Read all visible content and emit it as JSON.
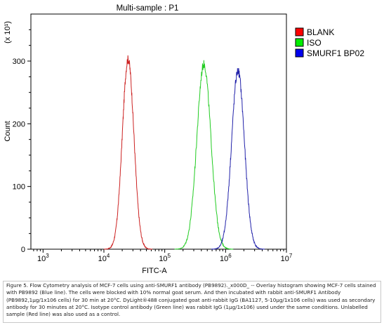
{
  "chart_data": {
    "type": "line",
    "title": "Multi-sample : P1",
    "xlabel": "FITC-A",
    "ylabel": "Count",
    "y_multiplier_label": "(x 10¹)",
    "x_scale": "log",
    "xlim": [
      631,
      10000000
    ],
    "ylim": [
      0,
      375
    ],
    "x_ticks": [
      {
        "value": 1000,
        "base": "10",
        "exp": "3"
      },
      {
        "value": 10000,
        "base": "10",
        "exp": "4"
      },
      {
        "value": 100000,
        "base": "10",
        "exp": "5"
      },
      {
        "value": 1000000,
        "base": "10",
        "exp": "6"
      },
      {
        "value": 10000000,
        "base": "10",
        "exp": "7"
      }
    ],
    "y_ticks": [
      0,
      100,
      200,
      300
    ],
    "grid": false,
    "legend_position": "top-right",
    "series": [
      {
        "name": "BLANK",
        "color": "#cc2222",
        "legend_color": "#ff0000",
        "peak_x": 25000,
        "peak_y": 303,
        "width_decades": 0.095
      },
      {
        "name": "ISO",
        "color": "#22cc22",
        "legend_color": "#00ee00",
        "peak_x": 440000,
        "peak_y": 295,
        "width_decades": 0.115
      },
      {
        "name": "SMURF1 BP02",
        "color": "#2222aa",
        "legend_color": "#0000ee",
        "peak_x": 1600000,
        "peak_y": 284,
        "width_decades": 0.105
      }
    ]
  },
  "caption": "Figure 5. Flow Cytometry analysis of MCF-7 cells using anti-SMURF1 antibody (PB9892)._x000D_ -- Overlay histogram showing MCF-7 cells stained with PB9892 (Blue line). The cells were blocked with 10% normal goat serum. And then incubated with rabbit anti-SMURF1 Antibody (PB9892,1μg/1x106 cells) for 30 min at 20°C. DyLight®488 conjugated goat anti-rabbit IgG (BA1127, 5-10μg/1x106 cells) was used as secondary antibody for 30 minutes at 20°C. Isotype control antibody (Green line) was rabbit IgG (1μg/1x106) used under the same conditions. Unlabelled sample (Red line) was also used as a control."
}
